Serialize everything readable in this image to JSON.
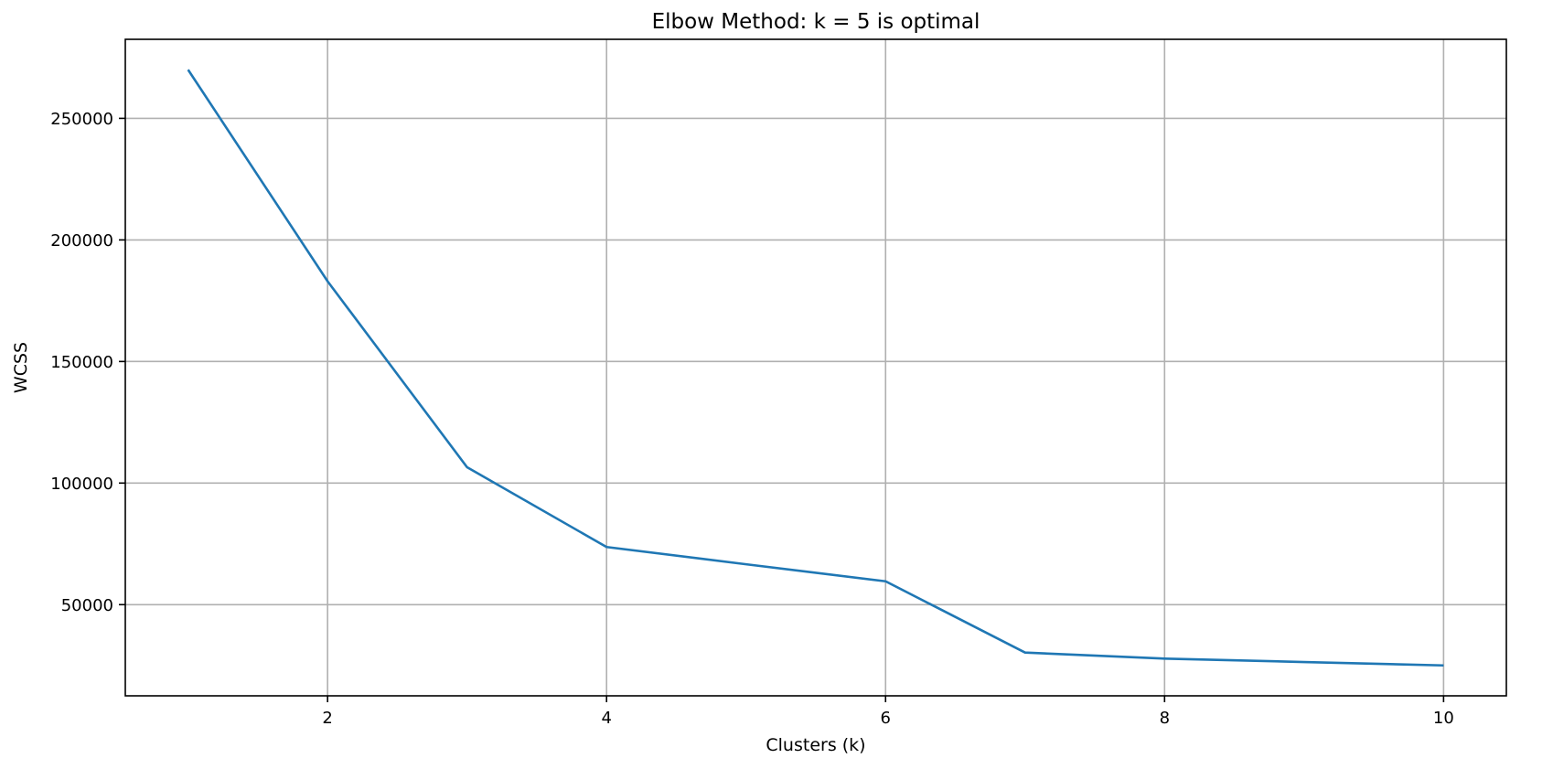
{
  "chart_data": {
    "type": "line",
    "title": "Elbow Method: k = 5 is optimal",
    "xlabel": "Clusters (k)",
    "ylabel": "WCSS",
    "x": [
      1,
      2,
      3,
      4,
      5,
      6,
      7,
      8,
      9,
      10
    ],
    "series": [
      {
        "values": [
          270000,
          183000,
          106500,
          73700,
          66600,
          59600,
          30300,
          27800,
          26400,
          25000
        ],
        "color": "#1f77b4"
      }
    ],
    "xlim": [
      0.55,
      10.45
    ],
    "ylim": [
      12500,
      282500
    ],
    "xticks": [
      2,
      4,
      6,
      8,
      10
    ],
    "yticks": [
      50000,
      100000,
      150000,
      200000,
      250000
    ],
    "grid": true,
    "legend": "none"
  }
}
